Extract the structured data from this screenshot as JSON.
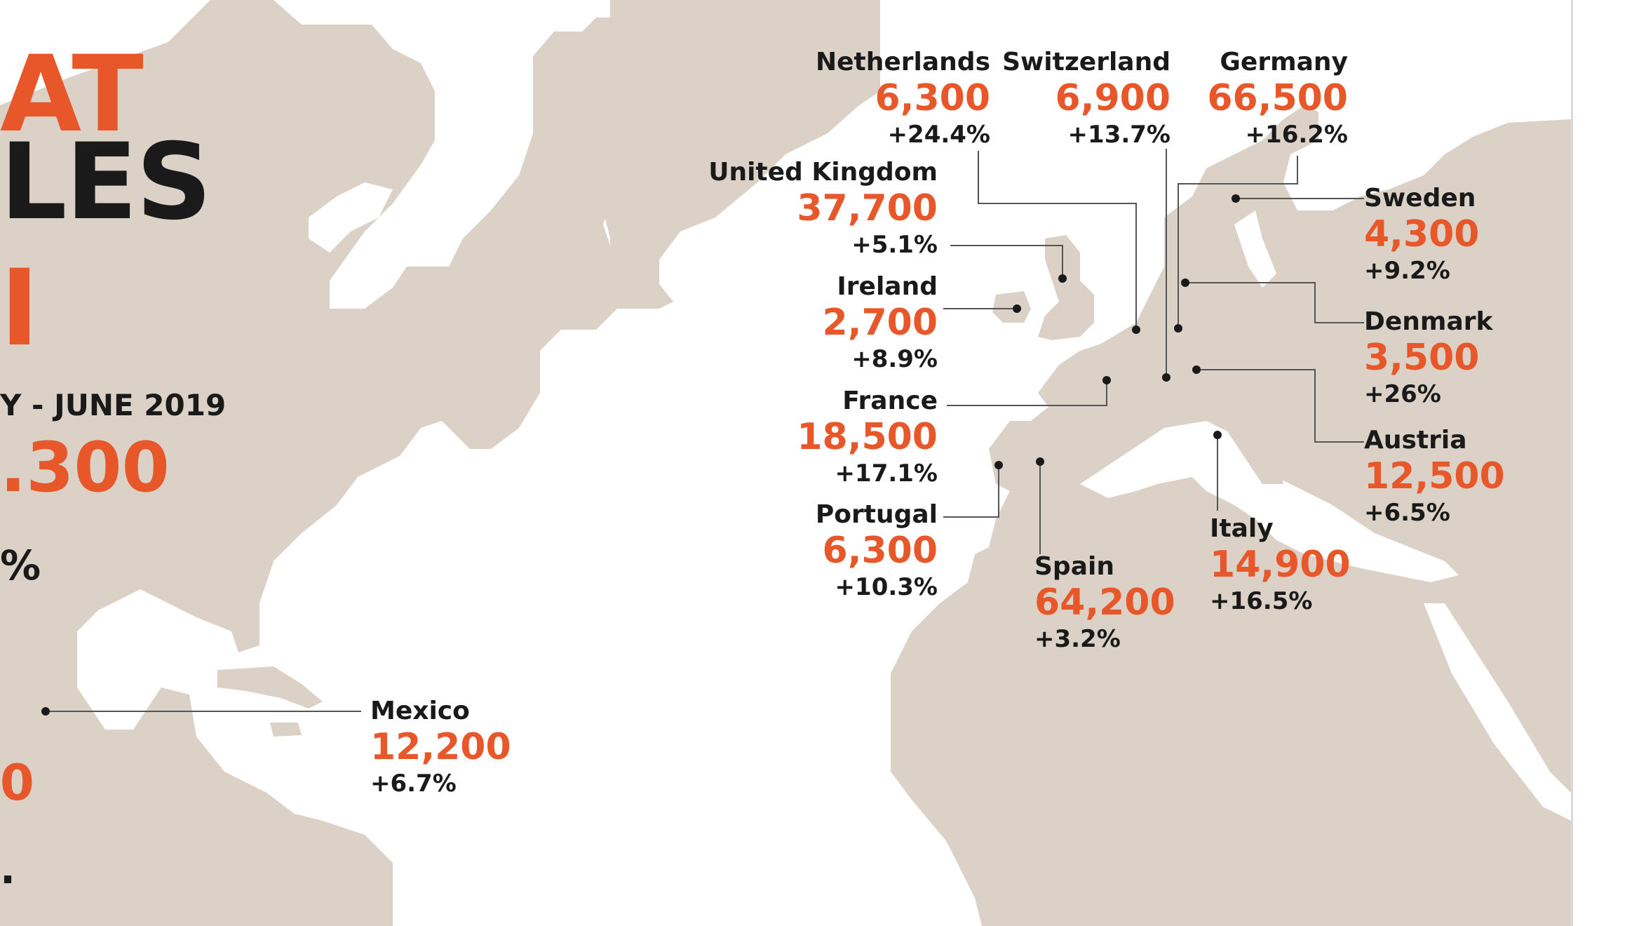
{
  "headline": {
    "line1": "AT",
    "line2": "LES",
    "line3": "I"
  },
  "summary": {
    "period": "Y - JUNE 2019",
    "total": ".300",
    "growth": "%",
    "region_value": "0",
    "region_growth": "."
  },
  "countries": [
    {
      "id": "netherlands",
      "name": "Netherlands",
      "sales": "6,300",
      "change": "+24.4%"
    },
    {
      "id": "switzerland",
      "name": "Switzerland",
      "sales": "6,900",
      "change": "+13.7%"
    },
    {
      "id": "germany",
      "name": "Germany",
      "sales": "66,500",
      "change": "+16.2%"
    },
    {
      "id": "united-kingdom",
      "name": "United Kingdom",
      "sales": "37,700",
      "change": "+5.1%"
    },
    {
      "id": "sweden",
      "name": "Sweden",
      "sales": "4,300",
      "change": "+9.2%"
    },
    {
      "id": "ireland",
      "name": "Ireland",
      "sales": "2,700",
      "change": "+8.9%"
    },
    {
      "id": "denmark",
      "name": "Denmark",
      "sales": "3,500",
      "change": "+26%"
    },
    {
      "id": "france",
      "name": "France",
      "sales": "18,500",
      "change": "+17.1%"
    },
    {
      "id": "austria",
      "name": "Austria",
      "sales": "12,500",
      "change": "+6.5%"
    },
    {
      "id": "portugal",
      "name": "Portugal",
      "sales": "6,300",
      "change": "+10.3%"
    },
    {
      "id": "italy",
      "name": "Italy",
      "sales": "14,900",
      "change": "+16.5%"
    },
    {
      "id": "spain",
      "name": "Spain",
      "sales": "64,200",
      "change": "+3.2%"
    },
    {
      "id": "mexico",
      "name": "Mexico",
      "sales": "12,200",
      "change": "+6.7%"
    }
  ],
  "colors": {
    "accent": "#e8572a",
    "text": "#1a1a1a",
    "land": "#dbd1c6",
    "background": "#ffffff"
  }
}
